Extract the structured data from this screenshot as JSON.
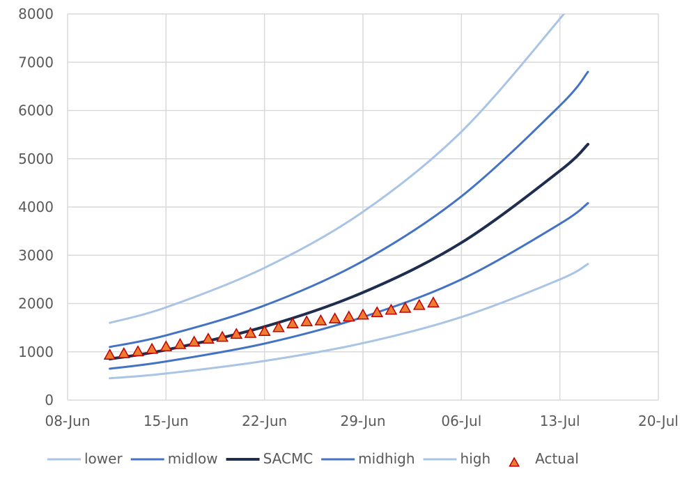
{
  "chart_data": {
    "type": "line",
    "title": "",
    "xlabel": "",
    "ylabel": "",
    "x_ticks": [
      "08-Jun",
      "15-Jun",
      "22-Jun",
      "29-Jun",
      "06-Jul",
      "13-Jul",
      "20-Jul"
    ],
    "y_ticks": [
      "0",
      "1000",
      "2000",
      "3000",
      "4000",
      "5000",
      "6000",
      "7000",
      "8000"
    ],
    "ylim": [
      0,
      8000
    ],
    "xlim": [
      "2020-06-08",
      "2020-07-20"
    ],
    "grid": "vertical and horizontal",
    "legend_position": "bottom",
    "series": [
      {
        "name": "lower",
        "color": "#a9c4e4",
        "points": [
          [
            "2020-06-11",
            450
          ],
          [
            "2020-06-15",
            550
          ],
          [
            "2020-06-22",
            810
          ],
          [
            "2020-06-29",
            1180
          ],
          [
            "2020-07-06",
            1720
          ],
          [
            "2020-07-13",
            2500
          ],
          [
            "2020-07-15",
            2820
          ]
        ]
      },
      {
        "name": "midlow",
        "color": "#4472c4",
        "points": [
          [
            "2020-06-11",
            650
          ],
          [
            "2020-06-15",
            800
          ],
          [
            "2020-06-22",
            1170
          ],
          [
            "2020-06-29",
            1720
          ],
          [
            "2020-07-06",
            2500
          ],
          [
            "2020-07-13",
            3650
          ],
          [
            "2020-07-15",
            4080
          ]
        ]
      },
      {
        "name": "SACMC",
        "color": "#1f2d4e",
        "points": [
          [
            "2020-06-11",
            850
          ],
          [
            "2020-06-15",
            1040
          ],
          [
            "2020-06-22",
            1520
          ],
          [
            "2020-06-29",
            2230
          ],
          [
            "2020-07-06",
            3260
          ],
          [
            "2020-07-13",
            4750
          ],
          [
            "2020-07-15",
            5300
          ]
        ]
      },
      {
        "name": "midhigh",
        "color": "#4472c4",
        "points": [
          [
            "2020-06-11",
            1100
          ],
          [
            "2020-06-15",
            1340
          ],
          [
            "2020-06-22",
            1960
          ],
          [
            "2020-06-29",
            2880
          ],
          [
            "2020-07-06",
            4220
          ],
          [
            "2020-07-13",
            6100
          ],
          [
            "2020-07-15",
            6800
          ]
        ]
      },
      {
        "name": "high",
        "color": "#a9c4e4",
        "points": [
          [
            "2020-06-11",
            1600
          ],
          [
            "2020-06-15",
            1920
          ],
          [
            "2020-06-22",
            2740
          ],
          [
            "2020-06-29",
            3900
          ],
          [
            "2020-07-06",
            5560
          ],
          [
            "2020-07-13",
            7900
          ],
          [
            "2020-07-14",
            8330
          ]
        ]
      },
      {
        "name": "Actual",
        "color": "#ed7d31",
        "marker": "triangle",
        "marker_edge": "#c00000",
        "points": [
          [
            "2020-06-11",
            930
          ],
          [
            "2020-06-12",
            960
          ],
          [
            "2020-06-13",
            1000
          ],
          [
            "2020-06-14",
            1050
          ],
          [
            "2020-06-15",
            1100
          ],
          [
            "2020-06-16",
            1150
          ],
          [
            "2020-06-17",
            1200
          ],
          [
            "2020-06-18",
            1260
          ],
          [
            "2020-06-19",
            1300
          ],
          [
            "2020-06-20",
            1360
          ],
          [
            "2020-06-21",
            1380
          ],
          [
            "2020-06-22",
            1420
          ],
          [
            "2020-06-23",
            1500
          ],
          [
            "2020-06-24",
            1580
          ],
          [
            "2020-06-25",
            1620
          ],
          [
            "2020-06-26",
            1640
          ],
          [
            "2020-06-27",
            1680
          ],
          [
            "2020-06-28",
            1720
          ],
          [
            "2020-06-29",
            1760
          ],
          [
            "2020-06-30",
            1810
          ],
          [
            "2020-07-01",
            1860
          ],
          [
            "2020-07-02",
            1900
          ],
          [
            "2020-07-03",
            1960
          ],
          [
            "2020-07-04",
            2010
          ]
        ]
      }
    ]
  }
}
